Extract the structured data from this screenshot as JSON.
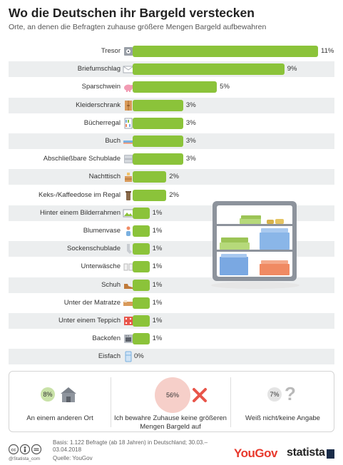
{
  "header": {
    "title": "Wo die Deutschen ihr Bargeld verstecken",
    "subtitle": "Orte, an denen die Befragten zuhause größere Mengen Bargeld aufbewahren"
  },
  "chart_data": {
    "type": "bar",
    "orientation": "horizontal",
    "title": "Wo die Deutschen ihr Bargeld verstecken",
    "subtitle": "Orte, an denen die Befragten zuhause größere Mengen Bargeld aufbewahren",
    "unit": "%",
    "xlim": [
      0,
      11
    ],
    "grid": false,
    "legend": "none",
    "bar_color": "#8bc33a",
    "categories": [
      "Tresor",
      "Briefumschlag",
      "Sparschwein",
      "Kleiderschrank",
      "Bücherregal",
      "Buch",
      "Abschließbare Schublade",
      "Nachttisch",
      "Keks-/Kaffeedose im Regal",
      "Hinter einem Bilderrahmen",
      "Blumenvase",
      "Sockenschublade",
      "Unterwäsche",
      "Schuh",
      "Unter der Matratze",
      "Unter einem Teppich",
      "Backofen",
      "Eisfach"
    ],
    "values": [
      11,
      9,
      5,
      3,
      3,
      3,
      3,
      2,
      2,
      1,
      1,
      1,
      1,
      1,
      1,
      1,
      1,
      0
    ],
    "value_labels": [
      "11%",
      "9%",
      "5%",
      "3%",
      "3%",
      "3%",
      "3%",
      "2%",
      "2%",
      "1%",
      "1%",
      "1%",
      "1%",
      "1%",
      "1%",
      "1%",
      "1%",
      "0%"
    ],
    "icons": [
      "safe-icon",
      "envelope-icon",
      "piggy-bank-icon",
      "wardrobe-icon",
      "bookshelf-icon",
      "book-icon",
      "drawer-icon",
      "nightstand-icon",
      "tin-icon",
      "picture-frame-icon",
      "vase-icon",
      "sock-icon",
      "underwear-icon",
      "shoe-icon",
      "mattress-icon",
      "carpet-icon",
      "oven-icon",
      "freezer-icon"
    ]
  },
  "summary": [
    {
      "value": "8%",
      "label": "An einem anderen Ort",
      "icon": "house-icon",
      "circle_color": "#c9e2a8"
    },
    {
      "value": "56%",
      "label": "Ich bewahre Zuhause keine größeren Mengen Bargeld auf",
      "icon": "cross-icon",
      "circle_color": "#f6cfc9"
    },
    {
      "value": "7%",
      "label": "Weiß nicht/keine Angabe",
      "icon": "question-icon",
      "circle_color": "#e4e4e4"
    }
  ],
  "footer": {
    "basis": "Basis: 1.122 Befragte (ab 18 Jahren) in Deutschland; 30.03.–03.04.2018",
    "source": "Quelle: YouGov",
    "credit": "@Statista_com",
    "brand_yougov": "YouGov",
    "brand_statista": "statista"
  },
  "colors": {
    "bar": "#8bc33a",
    "row_shade": "#eceeef",
    "accent_red": "#e8392d",
    "navy": "#1a2c49"
  }
}
